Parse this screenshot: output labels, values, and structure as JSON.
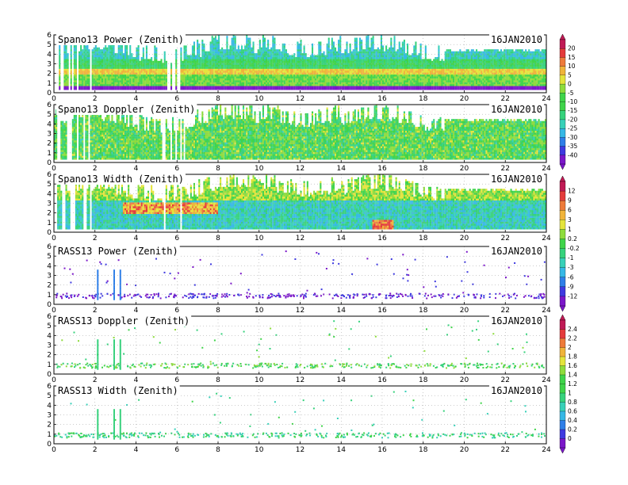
{
  "colorbars": [
    {
      "id": "cb-power",
      "labels": [
        "20",
        "15",
        "10",
        "5",
        "0",
        "-5",
        "-10",
        "-15",
        "-20",
        "-25",
        "-30",
        "-35",
        "-40"
      ]
    },
    {
      "id": "cb-width",
      "labels": [
        "12",
        "9",
        "6",
        "3",
        "1",
        "0.2",
        "-0.2",
        "-1",
        "-3",
        "-6",
        "-9",
        "-12"
      ]
    },
    {
      "id": "cb-rass",
      "labels": [
        "2.4",
        "2.2",
        "2",
        "1.8",
        "1.6",
        "1.4",
        "1.2",
        "1",
        "0.8",
        "0.6",
        "0.4",
        "0.2",
        "0"
      ]
    }
  ],
  "chart_data": [
    {
      "type": "heatmap",
      "title": "Spano13 Power (Zenith)",
      "date": "16JAN2010",
      "xlim": [
        0,
        24
      ],
      "ylim": [
        0,
        6
      ],
      "xticks": [
        0,
        2,
        4,
        6,
        8,
        10,
        12,
        14,
        16,
        18,
        20,
        22,
        24
      ],
      "yticks": [
        0,
        1,
        2,
        3,
        4,
        5,
        6
      ],
      "colorbar": "cb-power",
      "grid": true
    },
    {
      "type": "heatmap",
      "title": "Spano13 Doppler (Zenith)",
      "date": "16JAN2010",
      "xlim": [
        0,
        24
      ],
      "ylim": [
        0,
        6
      ],
      "xticks": [
        0,
        2,
        4,
        6,
        8,
        10,
        12,
        14,
        16,
        18,
        20,
        22,
        24
      ],
      "yticks": [
        0,
        1,
        2,
        3,
        4,
        5,
        6
      ],
      "colorbar": null,
      "grid": true
    },
    {
      "type": "heatmap",
      "title": "Spano13 Width (Zenith)",
      "date": "16JAN2010",
      "xlim": [
        0,
        24
      ],
      "ylim": [
        0,
        6
      ],
      "xticks": [
        0,
        2,
        4,
        6,
        8,
        10,
        12,
        14,
        16,
        18,
        20,
        22,
        24
      ],
      "yticks": [
        0,
        1,
        2,
        3,
        4,
        5,
        6
      ],
      "colorbar": "cb-width",
      "grid": true
    },
    {
      "type": "scatter",
      "title": "RASS13 Power (Zenith)",
      "date": "16JAN2010",
      "xlim": [
        0,
        24
      ],
      "ylim": [
        0,
        6
      ],
      "xticks": [
        0,
        2,
        4,
        6,
        8,
        10,
        12,
        14,
        16,
        18,
        20,
        22,
        24
      ],
      "yticks": [
        0,
        1,
        2,
        3,
        4,
        5,
        6
      ],
      "colorbar": null,
      "grid": true
    },
    {
      "type": "scatter",
      "title": "RASS13 Doppler (Zenith)",
      "date": "16JAN2010",
      "xlim": [
        0,
        24
      ],
      "ylim": [
        0,
        6
      ],
      "xticks": [
        0,
        2,
        4,
        6,
        8,
        10,
        12,
        14,
        16,
        18,
        20,
        22,
        24
      ],
      "yticks": [
        0,
        1,
        2,
        3,
        4,
        5,
        6
      ],
      "colorbar": "cb-rass",
      "grid": true
    },
    {
      "type": "scatter",
      "title": "RASS13 Width (Zenith)",
      "date": "16JAN2010",
      "xlim": [
        0,
        24
      ],
      "ylim": [
        0,
        6
      ],
      "xticks": [
        0,
        2,
        4,
        6,
        8,
        10,
        12,
        14,
        16,
        18,
        20,
        22,
        24
      ],
      "yticks": [
        0,
        1,
        2,
        3,
        4,
        5,
        6
      ],
      "colorbar": null,
      "grid": true
    }
  ]
}
